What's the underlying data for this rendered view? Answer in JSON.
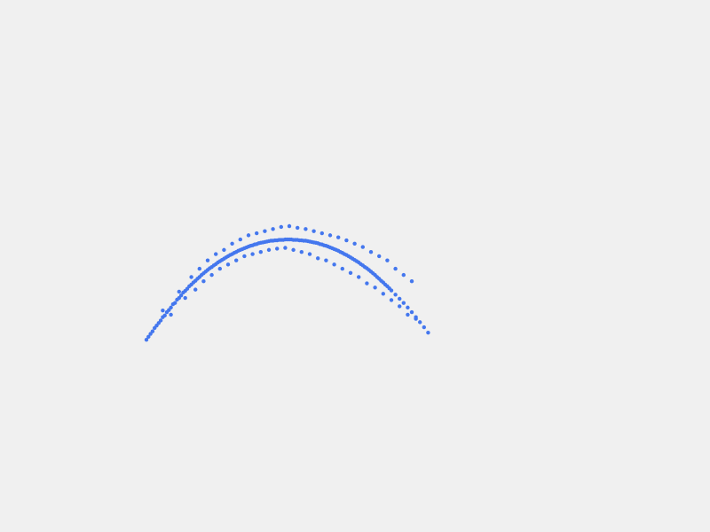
{
  "chart_data": {
    "type": "scatter",
    "title": "",
    "xlabel": "",
    "ylabel": "",
    "grid": false,
    "legend": "none",
    "xlim": [
      0,
      1
    ],
    "ylim": [
      -0.15,
      0.3
    ],
    "color": "#4477ee",
    "points": [
      [
        0.0,
        -0.11
      ],
      [
        0.005,
        -0.103
      ],
      [
        0.01,
        -0.096
      ],
      [
        0.015,
        -0.09
      ],
      [
        0.02,
        -0.082
      ],
      [
        0.025,
        -0.076
      ],
      [
        0.03,
        -0.07
      ],
      [
        0.035,
        -0.064
      ],
      [
        0.04,
        -0.056
      ],
      [
        0.045,
        -0.052
      ],
      [
        0.05,
        -0.044
      ],
      [
        0.055,
        -0.039
      ],
      [
        0.06,
        -0.033
      ],
      [
        0.065,
        -0.025
      ],
      [
        0.07,
        -0.022
      ],
      [
        0.075,
        -0.014
      ],
      [
        0.08,
        -0.01
      ],
      [
        0.085,
        -0.004
      ],
      [
        0.09,
        0.003
      ],
      [
        0.095,
        0.007
      ],
      [
        0.1,
        0.012
      ],
      [
        0.105,
        0.018
      ],
      [
        0.11,
        0.022
      ],
      [
        0.115,
        0.027
      ],
      [
        0.12,
        0.031
      ],
      [
        0.125,
        0.036
      ],
      [
        0.13,
        0.04
      ],
      [
        0.135,
        0.045
      ],
      [
        0.14,
        0.049
      ],
      [
        0.145,
        0.053
      ],
      [
        0.15,
        0.057
      ],
      [
        0.155,
        0.061
      ],
      [
        0.16,
        0.064
      ],
      [
        0.165,
        0.068
      ],
      [
        0.17,
        0.071
      ],
      [
        0.175,
        0.075
      ],
      [
        0.18,
        0.078
      ],
      [
        0.185,
        0.081
      ],
      [
        0.19,
        0.084
      ],
      [
        0.195,
        0.087
      ],
      [
        0.2,
        0.09
      ],
      [
        0.205,
        0.093
      ],
      [
        0.21,
        0.095
      ],
      [
        0.215,
        0.098
      ],
      [
        0.22,
        0.1
      ],
      [
        0.225,
        0.103
      ],
      [
        0.23,
        0.105
      ],
      [
        0.235,
        0.107
      ],
      [
        0.24,
        0.109
      ],
      [
        0.245,
        0.111
      ],
      [
        0.25,
        0.113
      ],
      [
        0.255,
        0.115
      ],
      [
        0.26,
        0.116
      ],
      [
        0.265,
        0.118
      ],
      [
        0.27,
        0.119
      ],
      [
        0.275,
        0.121
      ],
      [
        0.28,
        0.122
      ],
      [
        0.285,
        0.123
      ],
      [
        0.29,
        0.124
      ],
      [
        0.295,
        0.125
      ],
      [
        0.3,
        0.126
      ],
      [
        0.305,
        0.127
      ],
      [
        0.31,
        0.127
      ],
      [
        0.315,
        0.128
      ],
      [
        0.32,
        0.128
      ],
      [
        0.325,
        0.129
      ],
      [
        0.33,
        0.129
      ],
      [
        0.335,
        0.129
      ],
      [
        0.34,
        0.13
      ],
      [
        0.345,
        0.13
      ],
      [
        0.35,
        0.13
      ],
      [
        0.355,
        0.13
      ],
      [
        0.36,
        0.129
      ],
      [
        0.365,
        0.129
      ],
      [
        0.37,
        0.129
      ],
      [
        0.375,
        0.128
      ],
      [
        0.38,
        0.128
      ],
      [
        0.385,
        0.127
      ],
      [
        0.39,
        0.127
      ],
      [
        0.395,
        0.126
      ],
      [
        0.4,
        0.125
      ],
      [
        0.405,
        0.124
      ],
      [
        0.41,
        0.123
      ],
      [
        0.415,
        0.122
      ],
      [
        0.42,
        0.121
      ],
      [
        0.425,
        0.119
      ],
      [
        0.43,
        0.118
      ],
      [
        0.435,
        0.116
      ],
      [
        0.44,
        0.115
      ],
      [
        0.445,
        0.113
      ],
      [
        0.45,
        0.111
      ],
      [
        0.455,
        0.109
      ],
      [
        0.46,
        0.107
      ],
      [
        0.465,
        0.105
      ],
      [
        0.47,
        0.103
      ],
      [
        0.475,
        0.1
      ],
      [
        0.48,
        0.098
      ],
      [
        0.485,
        0.095
      ],
      [
        0.49,
        0.093
      ],
      [
        0.495,
        0.09
      ],
      [
        0.5,
        0.087
      ],
      [
        0.505,
        0.084
      ],
      [
        0.51,
        0.081
      ],
      [
        0.515,
        0.078
      ],
      [
        0.52,
        0.075
      ],
      [
        0.525,
        0.071
      ],
      [
        0.53,
        0.068
      ],
      [
        0.535,
        0.064
      ],
      [
        0.54,
        0.061
      ],
      [
        0.545,
        0.057
      ],
      [
        0.55,
        0.053
      ],
      [
        0.555,
        0.049
      ],
      [
        0.56,
        0.045
      ],
      [
        0.565,
        0.04
      ],
      [
        0.57,
        0.036
      ],
      [
        0.575,
        0.031
      ],
      [
        0.58,
        0.027
      ],
      [
        0.585,
        0.022
      ],
      [
        0.59,
        0.018
      ],
      [
        0.595,
        0.013
      ],
      [
        0.6,
        0.008
      ],
      [
        0.61,
        -0.002
      ],
      [
        0.62,
        -0.012
      ],
      [
        0.63,
        -0.022
      ],
      [
        0.64,
        -0.033
      ],
      [
        0.65,
        -0.044
      ],
      [
        0.66,
        -0.056
      ],
      [
        0.67,
        -0.068
      ],
      [
        0.68,
        -0.08
      ],
      [
        0.69,
        -0.093
      ],
      [
        0.04,
        -0.04
      ],
      [
        0.06,
        -0.05
      ],
      [
        0.08,
        0.005
      ],
      [
        0.095,
        -0.01
      ],
      [
        0.11,
        0.04
      ],
      [
        0.12,
        0.01
      ],
      [
        0.13,
        0.06
      ],
      [
        0.14,
        0.03
      ],
      [
        0.15,
        0.08
      ],
      [
        0.16,
        0.045
      ],
      [
        0.17,
        0.095
      ],
      [
        0.18,
        0.06
      ],
      [
        0.19,
        0.105
      ],
      [
        0.2,
        0.07
      ],
      [
        0.21,
        0.12
      ],
      [
        0.22,
        0.08
      ],
      [
        0.23,
        0.13
      ],
      [
        0.24,
        0.09
      ],
      [
        0.25,
        0.14
      ],
      [
        0.26,
        0.095
      ],
      [
        0.27,
        0.145
      ],
      [
        0.28,
        0.1
      ],
      [
        0.29,
        0.15
      ],
      [
        0.3,
        0.105
      ],
      [
        0.31,
        0.155
      ],
      [
        0.32,
        0.108
      ],
      [
        0.33,
        0.16
      ],
      [
        0.34,
        0.11
      ],
      [
        0.35,
        0.162
      ],
      [
        0.36,
        0.105
      ],
      [
        0.37,
        0.158
      ],
      [
        0.38,
        0.1
      ],
      [
        0.39,
        0.155
      ],
      [
        0.4,
        0.095
      ],
      [
        0.41,
        0.15
      ],
      [
        0.42,
        0.085
      ],
      [
        0.43,
        0.145
      ],
      [
        0.44,
        0.08
      ],
      [
        0.45,
        0.14
      ],
      [
        0.46,
        0.07
      ],
      [
        0.47,
        0.135
      ],
      [
        0.48,
        0.06
      ],
      [
        0.49,
        0.128
      ],
      [
        0.5,
        0.05
      ],
      [
        0.51,
        0.12
      ],
      [
        0.52,
        0.04
      ],
      [
        0.53,
        0.112
      ],
      [
        0.54,
        0.025
      ],
      [
        0.55,
        0.1
      ],
      [
        0.56,
        0.015
      ],
      [
        0.57,
        0.09
      ],
      [
        0.58,
        0.0
      ],
      [
        0.59,
        0.08
      ],
      [
        0.6,
        -0.015
      ],
      [
        0.61,
        0.06
      ],
      [
        0.62,
        -0.03
      ],
      [
        0.63,
        0.045
      ],
      [
        0.64,
        -0.05
      ],
      [
        0.65,
        0.03
      ],
      [
        0.66,
        -0.06
      ]
    ]
  }
}
